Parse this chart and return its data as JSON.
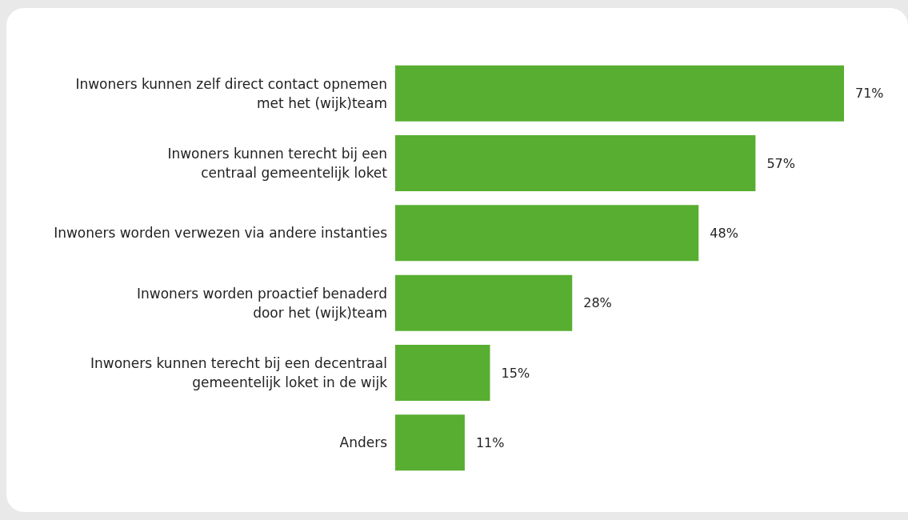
{
  "chart_data": {
    "type": "bar",
    "orientation": "horizontal",
    "categories": [
      "Inwoners kunnen zelf direct contact opnemen\nmet het (wijk)team",
      "Inwoners kunnen terecht bij een\ncentraal gemeentelijk loket",
      "Inwoners worden verwezen via andere instanties",
      "Inwoners worden proactief benaderd\ndoor het (wijk)team",
      "Inwoners kunnen terecht bij een decentraal\ngemeentelijk loket in de wijk",
      "Anders"
    ],
    "values": [
      71,
      57,
      48,
      28,
      15,
      11
    ],
    "value_labels": [
      "71%",
      "57%",
      "48%",
      "28%",
      "15%",
      "11%"
    ],
    "color": "#57ae30"
  }
}
